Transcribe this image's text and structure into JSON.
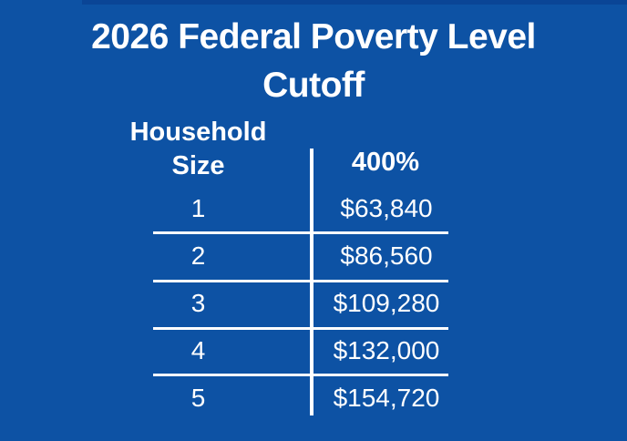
{
  "title": {
    "line1": "2026 Federal Poverty Level",
    "line2": "Cutoff"
  },
  "table": {
    "header": {
      "col1_line1": "Household",
      "col1_line2": "Size",
      "col2": "400%"
    }
  },
  "chart_data": {
    "type": "table",
    "title": "2026 Federal Poverty Level Cutoff",
    "columns": [
      "Household Size",
      "400%"
    ],
    "rows": [
      [
        "1",
        "$63,840"
      ],
      [
        "2",
        "$86,560"
      ],
      [
        "3",
        "$109,280"
      ],
      [
        "4",
        "$132,000"
      ],
      [
        "5",
        "$154,720"
      ]
    ]
  },
  "colors": {
    "background": "#0d52a4",
    "top_strip": "#0a4596",
    "text": "#ffffff",
    "divider": "#ffffff"
  }
}
